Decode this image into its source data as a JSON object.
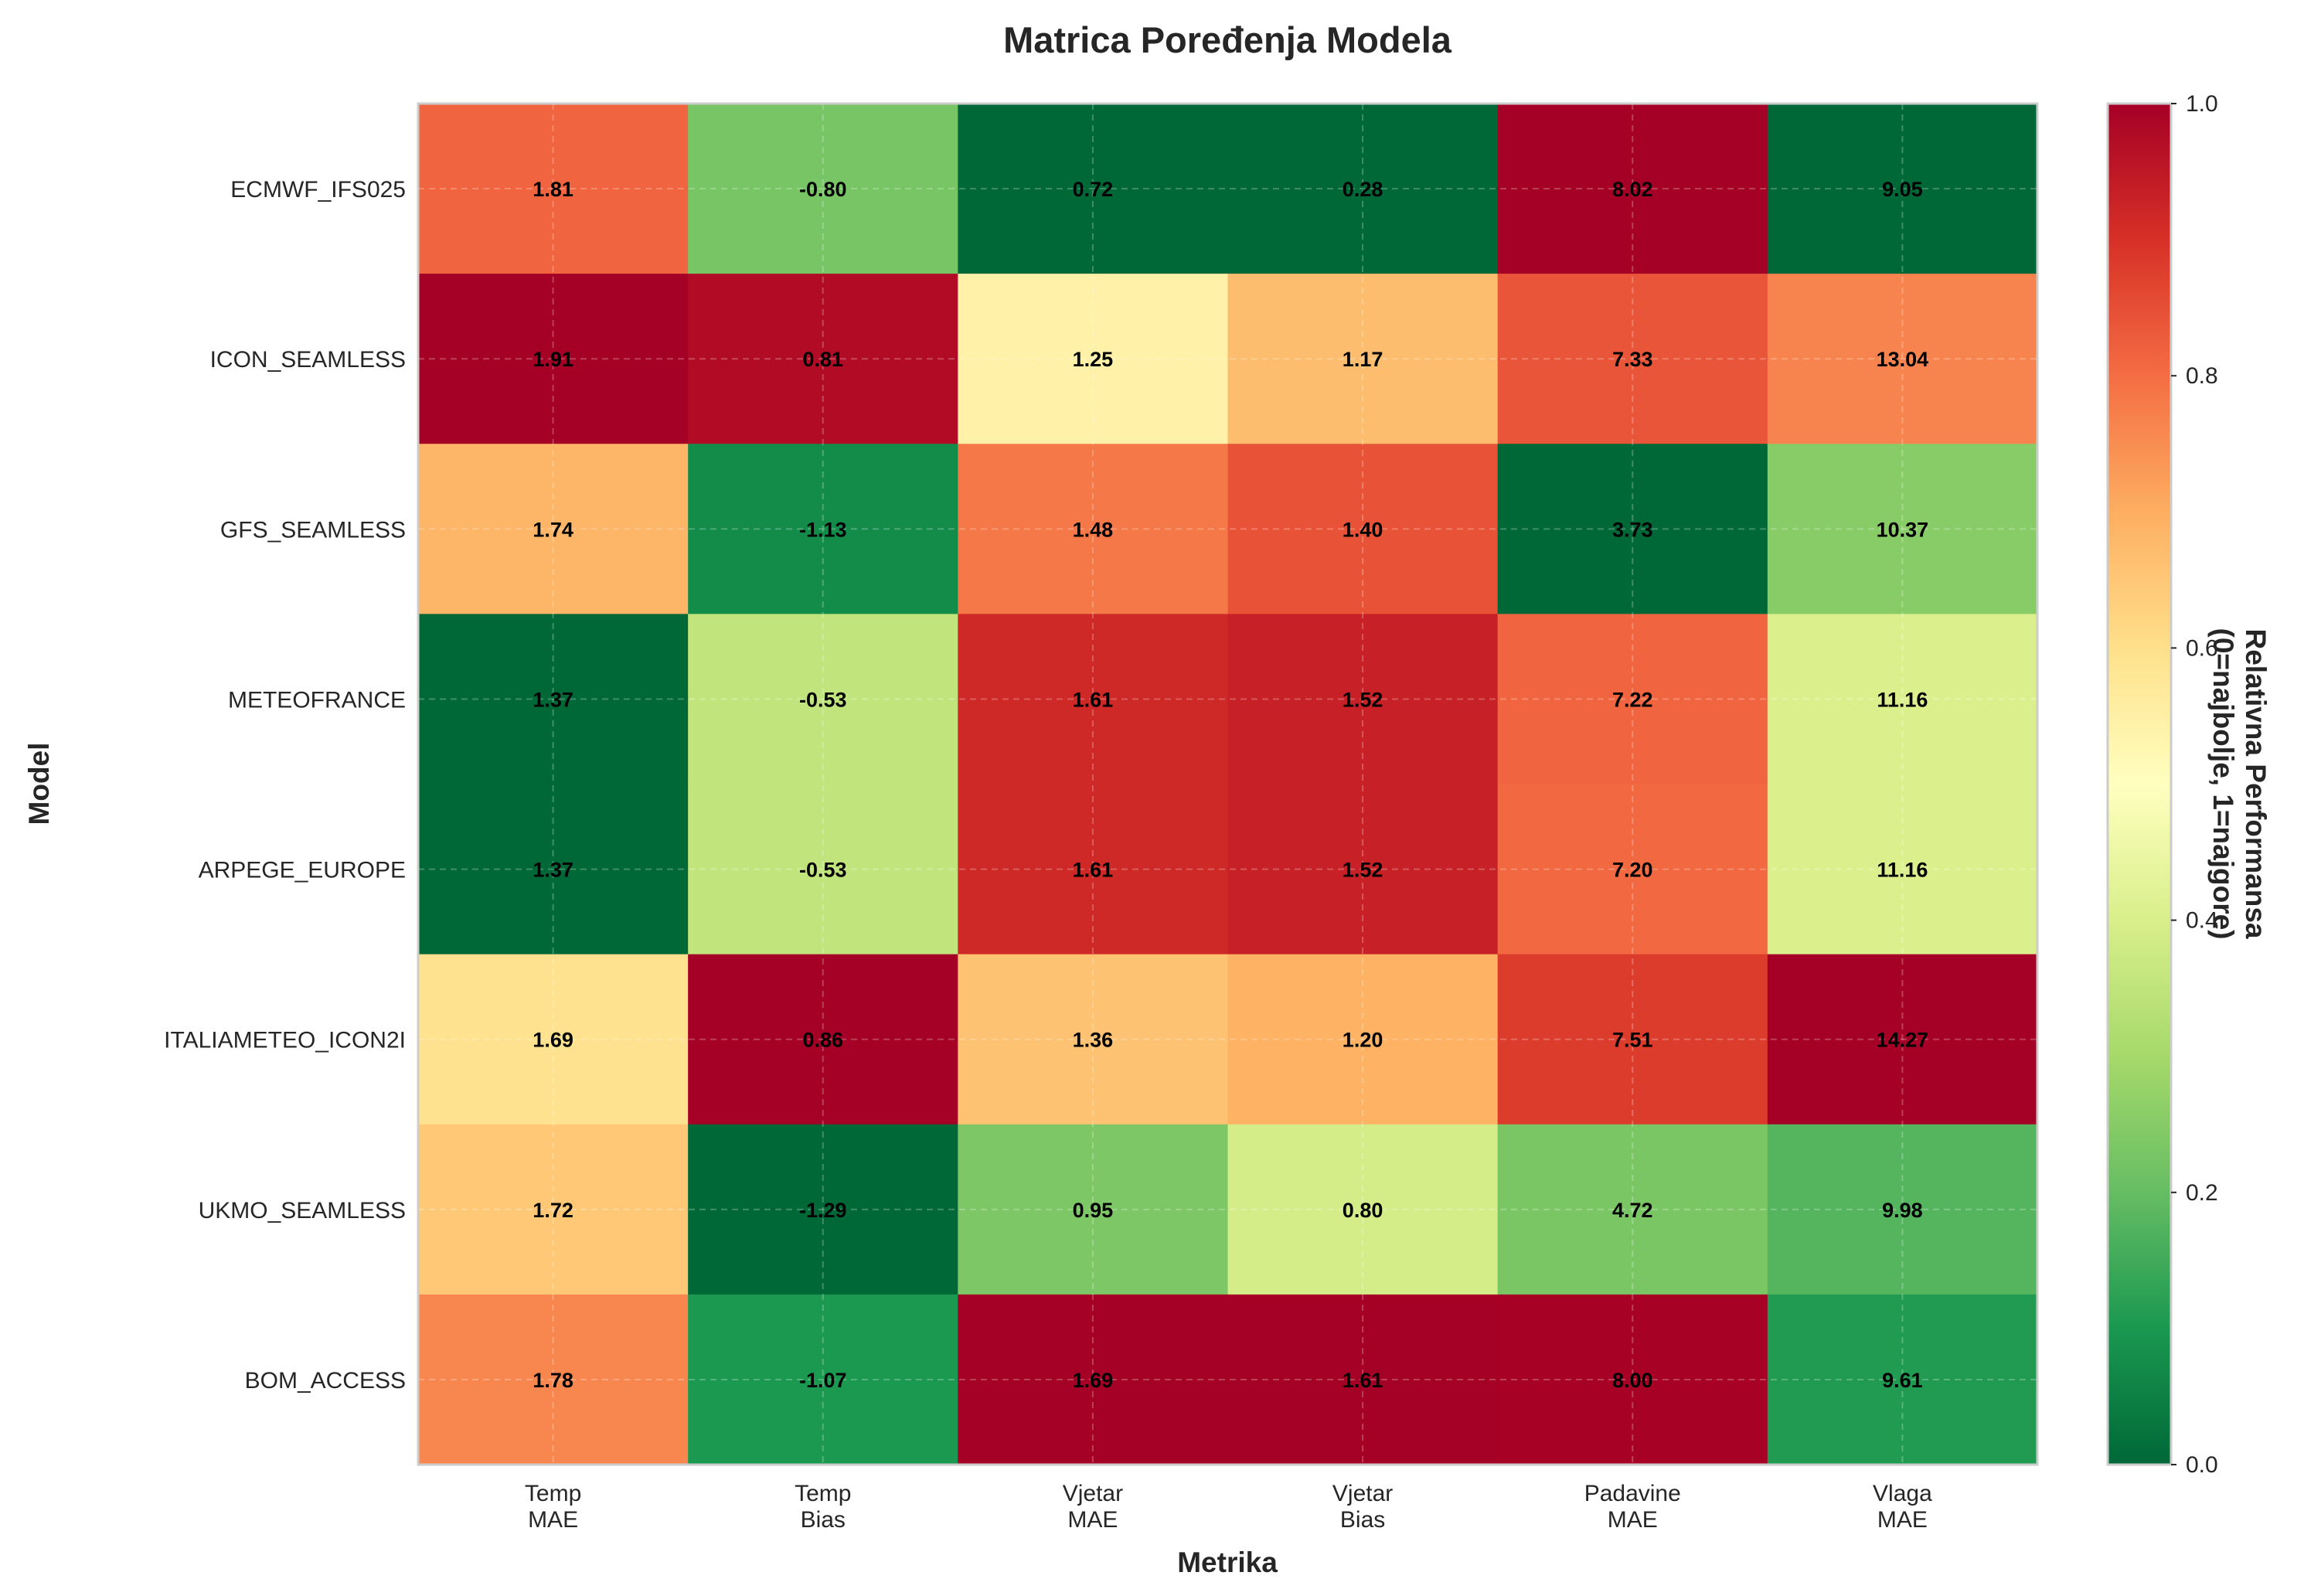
{
  "chart_data": {
    "type": "heatmap",
    "title": "Matrica Poređenja Modela",
    "xlabel": "Metrika",
    "ylabel": "Model",
    "x_categories": [
      "Temp\nMAE",
      "Temp\nBias",
      "Vjetar\nMAE",
      "Vjetar\nBias",
      "Padavine\nMAE",
      "Vlaga\nMAE"
    ],
    "y_categories": [
      "ECMWF_IFS025",
      "ICON_SEAMLESS",
      "GFS_SEAMLESS",
      "METEOFRANCE",
      "ARPEGE_EUROPE",
      "ITALIAMETEO_ICON2I",
      "UKMO_SEAMLESS",
      "BOM_ACCESS"
    ],
    "values": [
      [
        1.81,
        -0.8,
        0.72,
        0.28,
        8.02,
        9.05
      ],
      [
        1.91,
        0.81,
        1.25,
        1.17,
        7.33,
        13.04
      ],
      [
        1.74,
        -1.13,
        1.48,
        1.4,
        3.73,
        10.37
      ],
      [
        1.37,
        -0.53,
        1.61,
        1.52,
        7.22,
        11.16
      ],
      [
        1.37,
        -0.53,
        1.61,
        1.52,
        7.2,
        11.16
      ],
      [
        1.69,
        0.86,
        1.36,
        1.2,
        7.51,
        14.27
      ],
      [
        1.72,
        -1.29,
        0.95,
        0.8,
        4.72,
        9.98
      ],
      [
        1.78,
        -1.07,
        1.69,
        1.61,
        8.0,
        9.61
      ]
    ],
    "value_labels": [
      [
        "1.81",
        "-0.80",
        "0.72",
        "0.28",
        "8.02",
        "9.05"
      ],
      [
        "1.91",
        "0.81",
        "1.25",
        "1.17",
        "7.33",
        "13.04"
      ],
      [
        "1.74",
        "-1.13",
        "1.48",
        "1.40",
        "3.73",
        "10.37"
      ],
      [
        "1.37",
        "-0.53",
        "1.61",
        "1.52",
        "7.22",
        "11.16"
      ],
      [
        "1.37",
        "-0.53",
        "1.61",
        "1.52",
        "7.20",
        "11.16"
      ],
      [
        "1.69",
        "0.86",
        "1.36",
        "1.20",
        "7.51",
        "14.27"
      ],
      [
        "1.72",
        "-1.29",
        "0.95",
        "0.80",
        "4.72",
        "9.98"
      ],
      [
        "1.78",
        "-1.07",
        "1.69",
        "1.61",
        "8.00",
        "9.61"
      ]
    ],
    "colormap": "RdYlGn_r",
    "normalization": "per-column min-max",
    "colorbar": {
      "label": "Relativna Performansa\n(0=najbolje, 1=najgore)",
      "range": [
        0,
        1
      ],
      "ticks": [
        "0.0",
        "0.2",
        "0.4",
        "0.6",
        "0.8",
        "1.0"
      ]
    },
    "grid": true
  }
}
